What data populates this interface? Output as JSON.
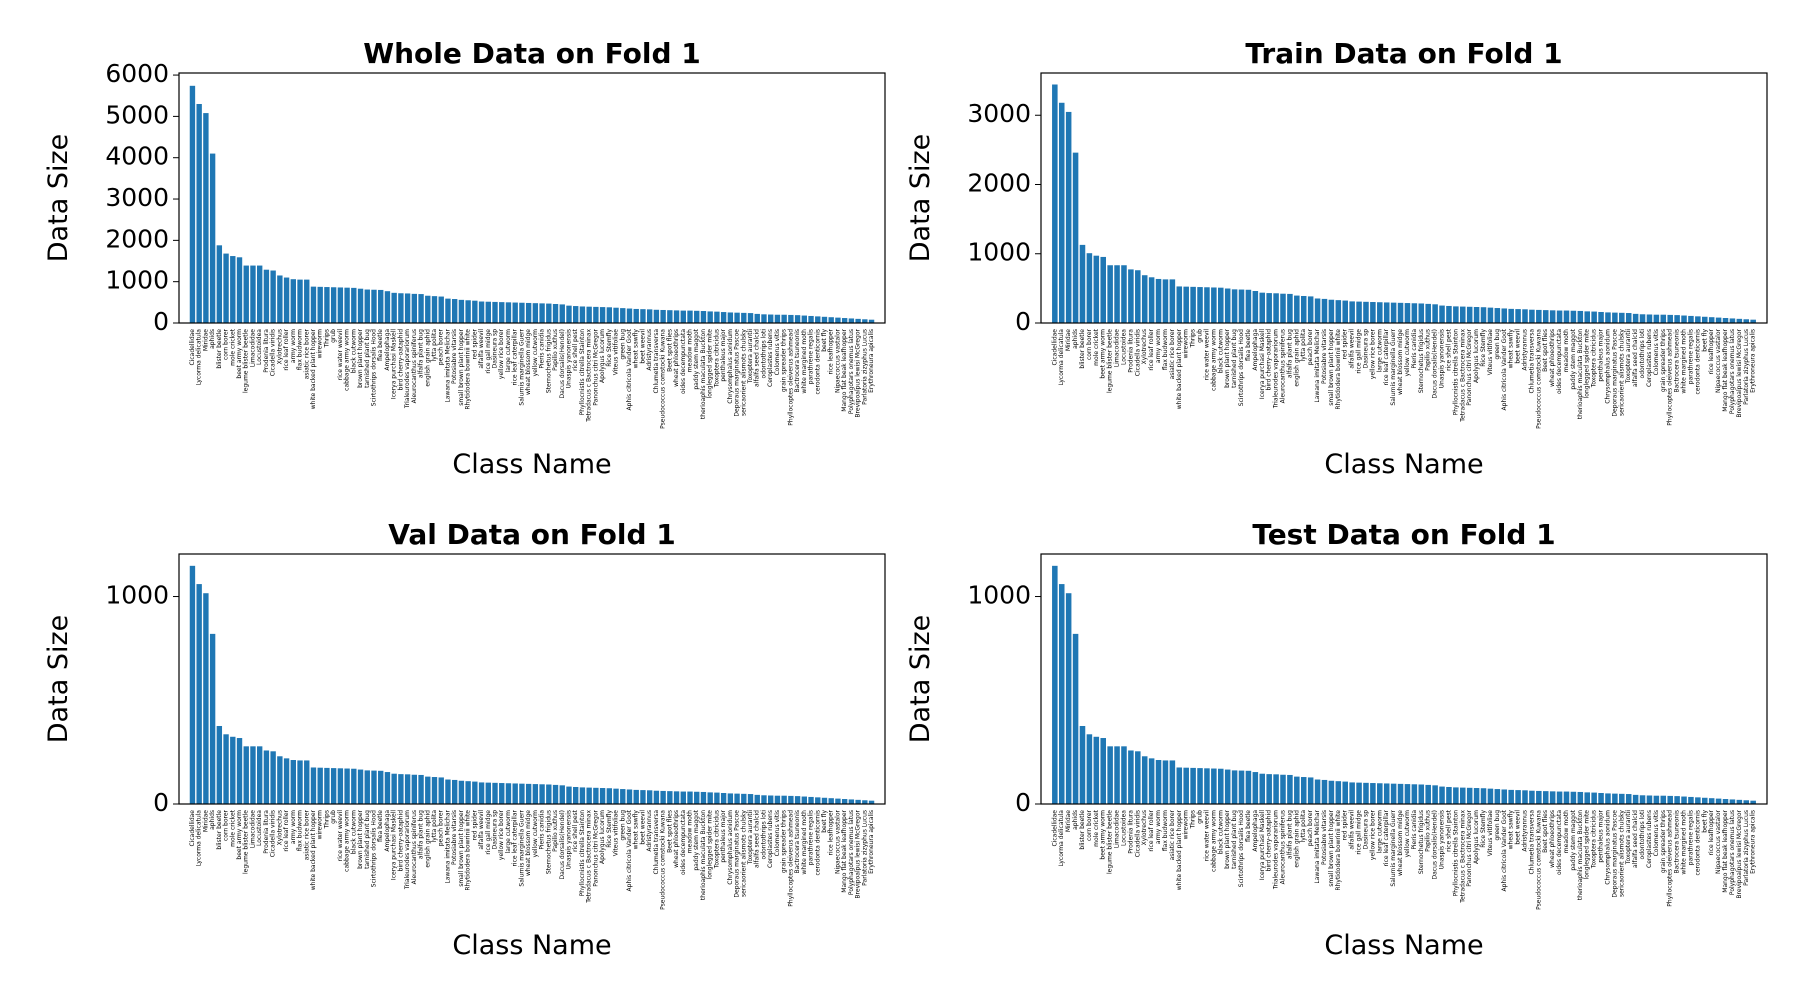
{
  "chart_data": [
    {
      "type": "bar",
      "title": "Whole Data on Fold 1",
      "xlabel": "Class Name",
      "ylabel": "Data Size",
      "color": "#1f77b4",
      "categories": [
        "Cicadellidae",
        "Lycorma delicatula",
        "Miridae",
        "aphids",
        "blister beetle",
        "corn borer",
        "mole cricket",
        "beet army worm",
        "legume blister beetle",
        "Limacodidae",
        "Locustoidea",
        "Prodenia litura",
        "Cicadella viridis",
        "Xylotrechus",
        "rice leaf roller",
        "army worm",
        "flax budworm",
        "asiatic rice borer",
        "white backed plant hopper",
        "wireworm",
        "Thrips",
        "grub",
        "rice water weevil",
        "cabbage army worm",
        "black cutworm",
        "brown plant hopper",
        "tarnished plant bug",
        "Scirtothrips dorsalis Hood",
        "flea beetle",
        "Ampelophaga",
        "Icerya purchasi Maskell",
        "bird cherry-oataphid",
        "Trialeurodes vaporariorum",
        "Aleurocanthus spiniferus",
        "alfalfa plant bug",
        "english grain aphid",
        "lytta polita",
        "peach borer",
        "Lawana imitata Melichar",
        "Potosiabre vitarsis",
        "small brown plant hopper",
        "Rhytidodera bowrinii white",
        "red spider",
        "alfalfa weevil",
        "rice gall midge",
        "Dasineura sp",
        "yellow rice borer",
        "large cutworm",
        "rice leaf caterpillar",
        "Salurnis marginella Guerr",
        "wheat blossom midge",
        "yellow cutworm",
        "Pieris canidia",
        "Sternochetus frigidus",
        "Papilio xuthus",
        "Dacus dorsalis(Hendel)",
        "Unaspis yanonensis",
        "rice shell pest",
        "Phyllocnistis citrella Stainton",
        "Tetradacus c Bactrocera minax",
        "Panonchus citri McGregor",
        "Apolygus lucorum",
        "Rice Stemfly",
        "Viteus vitifoliae",
        "green bug",
        "Aphis citricola Vander Goot",
        "wheat sawfly",
        "beet weevil",
        "Adristyrannus",
        "Chlumetia transversa",
        "Pseudococcus comstocki Kuwana",
        "Beet spot flies",
        "wheat phloeothrips",
        "oides decempunctata",
        "meadow moth",
        "paddy stem maggot",
        "therioaphis maculata Buckton",
        "longlegged spider mite",
        "Toxoptera citricidus",
        "penthaleus major",
        "Chrysomphalus aonidum",
        "Deporaus marginatus Pascoe",
        "sericaorient alismots chulsky",
        "Toxoptera aurantii",
        "alfalfa seed chalcid",
        "odontothrips loti",
        "Ceroplastes rubens",
        "Colomerus vitis",
        "grain spreader thrips",
        "Phyllocoptes oleiverus ashmead",
        "Bactrocera tsuneonis",
        "white margined moth",
        "parathrene regalis",
        "cerodonta denticornis",
        "beet fly",
        "rice leafhopper",
        "Nipaecoccus vastalor",
        "Mango flat beak leafhopper",
        "Polyphagotars onemus latus",
        "Brevipoalpus lewisi McGregor",
        "Parlatoria zizyphus Lucus",
        "Erythroneura apicalis"
      ],
      "values": [
        5740,
        5300,
        5080,
        4100,
        1880,
        1680,
        1620,
        1590,
        1390,
        1390,
        1390,
        1290,
        1270,
        1150,
        1100,
        1060,
        1050,
        1050,
        880,
        875,
        870,
        865,
        860,
        855,
        850,
        830,
        810,
        805,
        800,
        770,
        730,
        720,
        715,
        705,
        700,
        660,
        650,
        640,
        590,
        580,
        560,
        550,
        540,
        520,
        515,
        510,
        505,
        500,
        495,
        490,
        485,
        480,
        475,
        470,
        460,
        450,
        420,
        410,
        400,
        395,
        390,
        385,
        380,
        370,
        360,
        350,
        340,
        335,
        330,
        320,
        315,
        310,
        305,
        300,
        300,
        295,
        290,
        280,
        275,
        265,
        255,
        250,
        245,
        240,
        220,
        210,
        205,
        200,
        200,
        195,
        190,
        180,
        170,
        160,
        150,
        140,
        130,
        120,
        110,
        100,
        90,
        80
      ],
      "ylim": [
        0,
        6050
      ],
      "yticks": [
        0,
        1000,
        2000,
        3000,
        4000,
        5000,
        6000
      ]
    },
    {
      "type": "bar",
      "title": "Train Data on Fold 1",
      "xlabel": "Class Name",
      "ylabel": "Data Size",
      "color": "#1f77b4",
      "categories": [
        "Cicadellidae",
        "Lycorma delicatula",
        "Miridae",
        "aphids",
        "blister beetle",
        "corn borer",
        "mole cricket",
        "beet army worm",
        "legume blister beetle",
        "Limacodidae",
        "Locustoidea",
        "Prodenia litura",
        "Cicadella viridis",
        "Xylotrechus",
        "rice leaf roller",
        "army worm",
        "flax budworm",
        "asiatic rice borer",
        "white backed plant hopper",
        "wireworm",
        "Thrips",
        "grub",
        "rice water weevil",
        "cabbage army worm",
        "black cutworm",
        "brown plant hopper",
        "tarnished plant bug",
        "Scirtothrips dorsalis Hood",
        "flea beetle",
        "Ampelophaga",
        "Icerya purchasi Maskell",
        "bird cherry-oataphid",
        "Trialeurodes vaporariorum",
        "Aleurocanthus spiniferus",
        "alfalfa plant bug",
        "english grain aphid",
        "lytta polita",
        "peach borer",
        "Lawana imitata Melichar",
        "Potosiabre vitarsis",
        "small brown plant hopper",
        "Rhytidodera bowrinii white",
        "red spider",
        "alfalfa weevil",
        "rice gall midge",
        "Dasineura sp",
        "yellow rice borer",
        "large cutworm",
        "rice leaf caterpillar",
        "Salurnis marginella Guerr",
        "wheat blossom midge",
        "yellow cutworm",
        "Pieris canidia",
        "Sternochetus frigidus",
        "Papilio xuthus",
        "Dacus dorsalis(Hendel)",
        "Unaspis yanonensis",
        "rice shell pest",
        "Phyllocnistis citrella Stainton",
        "Tetradacus c Bactrocera minax",
        "Panonchus citri McGregor",
        "Apolygus lucorum",
        "Rice Stemfly",
        "Viteus vitifoliae",
        "green bug",
        "Aphis citricola Vander Goot",
        "wheat sawfly",
        "beet weevil",
        "Adristyrannus",
        "Chlumetia transversa",
        "Pseudococcus comstocki Kuwana",
        "Beet spot flies",
        "wheat phloeothrips",
        "oides decempunctata",
        "meadow moth",
        "paddy stem maggot",
        "therioaphis maculata Buckton",
        "longlegged spider mite",
        "Toxoptera citricidus",
        "penthaleus major",
        "Chrysomphalus aonidum",
        "Deporaus marginatus Pascoe",
        "sericaorient alismots chulsky",
        "Toxoptera aurantii",
        "alfalfa seed chalcid",
        "odontothrips loti",
        "Ceroplastes rubens",
        "Colomerus vitis",
        "grain spreader thrips",
        "Phyllocoptes oleiverus ashmead",
        "Bactrocera tsuneonis",
        "white margined moth",
        "parathrene regalis",
        "cerodonta denticornis",
        "beet fly",
        "rice leafhopper",
        "Nipaecoccus vastalor",
        "Mango flat beak leafhopper",
        "Polyphagotars onemus latus",
        "Brevipoalpus lewisi McGregor",
        "Parlatoria zizyphus Lucus",
        "Erythroneura apicalis"
      ],
      "values": [
        3444,
        3180,
        3048,
        2460,
        1128,
        1008,
        972,
        954,
        834,
        834,
        834,
        774,
        762,
        690,
        660,
        636,
        630,
        630,
        528,
        525,
        522,
        519,
        516,
        513,
        510,
        498,
        486,
        483,
        480,
        462,
        438,
        432,
        429,
        423,
        420,
        396,
        390,
        384,
        354,
        348,
        336,
        330,
        324,
        312,
        309,
        306,
        303,
        300,
        297,
        294,
        291,
        288,
        285,
        282,
        276,
        270,
        252,
        246,
        240,
        237,
        234,
        231,
        228,
        222,
        216,
        210,
        204,
        201,
        198,
        192,
        189,
        186,
        183,
        180,
        180,
        177,
        174,
        168,
        165,
        159,
        153,
        150,
        147,
        144,
        132,
        126,
        123,
        120,
        120,
        117,
        114,
        108,
        102,
        96,
        90,
        84,
        78,
        72,
        66,
        60,
        54,
        48
      ],
      "ylim": [
        0,
        3610
      ],
      "yticks": [
        0,
        1000,
        2000,
        3000
      ]
    },
    {
      "type": "bar",
      "title": "Val Data on Fold 1",
      "xlabel": "Class Name",
      "ylabel": "Data Size",
      "color": "#1f77b4",
      "categories": [
        "Cicadellidae",
        "Lycorma delicatula",
        "Miridae",
        "aphids",
        "blister beetle",
        "corn borer",
        "mole cricket",
        "beet army worm",
        "legume blister beetle",
        "Limacodidae",
        "Locustoidea",
        "Prodenia litura",
        "Cicadella viridis",
        "Xylotrechus",
        "rice leaf roller",
        "army worm",
        "flax budworm",
        "asiatic rice borer",
        "white backed plant hopper",
        "wireworm",
        "Thrips",
        "grub",
        "rice water weevil",
        "cabbage army worm",
        "black cutworm",
        "brown plant hopper",
        "tarnished plant bug",
        "Scirtothrips dorsalis Hood",
        "flea beetle",
        "Ampelophaga",
        "Icerya purchasi Maskell",
        "bird cherry-oataphid",
        "Trialeurodes vaporariorum",
        "Aleurocanthus spiniferus",
        "alfalfa plant bug",
        "english grain aphid",
        "lytta polita",
        "peach borer",
        "Lawana imitata Melichar",
        "Potosiabre vitarsis",
        "small brown plant hopper",
        "Rhytidodera bowrinii white",
        "red spider",
        "alfalfa weevil",
        "rice gall midge",
        "Dasineura sp",
        "yellow rice borer",
        "large cutworm",
        "rice leaf caterpillar",
        "Salurnis marginella Guerr",
        "wheat blossom midge",
        "yellow cutworm",
        "Pieris canidia",
        "Sternochetus frigidus",
        "Papilio xuthus",
        "Dacus dorsalis(Hendel)",
        "Unaspis yanonensis",
        "rice shell pest",
        "Phyllocnistis citrella Stainton",
        "Tetradacus c Bactrocera minax",
        "Panonchus citri McGregor",
        "Apolygus lucorum",
        "Rice Stemfly",
        "Viteus vitifoliae",
        "green bug",
        "Aphis citricola Vander Goot",
        "wheat sawfly",
        "beet weevil",
        "Adristyrannus",
        "Chlumetia transversa",
        "Pseudococcus comstocki Kuwana",
        "Beet spot flies",
        "wheat phloeothrips",
        "oides decempunctata",
        "meadow moth",
        "paddy stem maggot",
        "therioaphis maculata Buckton",
        "longlegged spider mite",
        "Toxoptera citricidus",
        "penthaleus major",
        "Chrysomphalus aonidum",
        "Deporaus marginatus Pascoe",
        "sericaorient alismots chulsky",
        "Toxoptera aurantii",
        "alfalfa seed chalcid",
        "odontothrips loti",
        "Ceroplastes rubens",
        "Colomerus vitis",
        "grain spreader thrips",
        "Phyllocoptes oleiverus ashmead",
        "Bactrocera tsuneonis",
        "white margined moth",
        "parathrene regalis",
        "cerodonta denticornis",
        "beet fly",
        "rice leafhopper",
        "Nipaecoccus vastalor",
        "Mango flat beak leafhopper",
        "Polyphagotars onemus latus",
        "Brevipoalpus lewisi McGregor",
        "Parlatoria zizyphus Lucus",
        "Erythroneura apicalis"
      ],
      "values": [
        1148,
        1060,
        1016,
        820,
        376,
        336,
        324,
        318,
        278,
        278,
        278,
        258,
        254,
        230,
        220,
        212,
        210,
        210,
        176,
        175,
        174,
        173,
        172,
        171,
        170,
        166,
        162,
        161,
        160,
        154,
        146,
        144,
        143,
        141,
        140,
        132,
        130,
        128,
        118,
        116,
        112,
        110,
        108,
        104,
        103,
        102,
        101,
        100,
        99,
        98,
        97,
        96,
        95,
        94,
        92,
        90,
        84,
        82,
        80,
        79,
        78,
        77,
        76,
        74,
        72,
        70,
        68,
        67,
        66,
        64,
        63,
        62,
        61,
        60,
        60,
        59,
        58,
        56,
        55,
        53,
        51,
        50,
        49,
        48,
        44,
        42,
        41,
        40,
        40,
        39,
        38,
        36,
        34,
        32,
        30,
        28,
        26,
        24,
        22,
        20,
        18,
        16
      ],
      "ylim": [
        0,
        1205
      ],
      "yticks": [
        0,
        1000
      ]
    },
    {
      "type": "bar",
      "title": "Test Data on Fold 1",
      "xlabel": "Class Name",
      "ylabel": "Data Size",
      "color": "#1f77b4",
      "categories": [
        "Cicadellidae",
        "Lycorma delicatula",
        "Miridae",
        "aphids",
        "blister beetle",
        "corn borer",
        "mole cricket",
        "beet army worm",
        "legume blister beetle",
        "Limacodidae",
        "Locustoidea",
        "Prodenia litura",
        "Cicadella viridis",
        "Xylotrechus",
        "rice leaf roller",
        "army worm",
        "flax budworm",
        "asiatic rice borer",
        "white backed plant hopper",
        "wireworm",
        "Thrips",
        "grub",
        "rice water weevil",
        "cabbage army worm",
        "black cutworm",
        "brown plant hopper",
        "tarnished plant bug",
        "Scirtothrips dorsalis Hood",
        "flea beetle",
        "Ampelophaga",
        "Icerya purchasi Maskell",
        "bird cherry-oataphid",
        "Trialeurodes vaporariorum",
        "Aleurocanthus spiniferus",
        "alfalfa plant bug",
        "english grain aphid",
        "lytta polita",
        "peach borer",
        "Lawana imitata Melichar",
        "Potosiabre vitarsis",
        "small brown plant hopper",
        "Rhytidodera bowrinii white",
        "red spider",
        "alfalfa weevil",
        "rice gall midge",
        "Dasineura sp",
        "yellow rice borer",
        "large cutworm",
        "rice leaf caterpillar",
        "Salurnis marginella Guerr",
        "wheat blossom midge",
        "yellow cutworm",
        "Pieris canidia",
        "Sternochetus frigidus",
        "Papilio xuthus",
        "Dacus dorsalis(Hendel)",
        "Unaspis yanonensis",
        "rice shell pest",
        "Phyllocnistis citrella Stainton",
        "Tetradacus c Bactrocera minax",
        "Panonchus citri McGregor",
        "Apolygus lucorum",
        "Rice Stemfly",
        "Viteus vitifoliae",
        "green bug",
        "Aphis citricola Vander Goot",
        "wheat sawfly",
        "beet weevil",
        "Adristyrannus",
        "Chlumetia transversa",
        "Pseudococcus comstocki Kuwana",
        "Beet spot flies",
        "wheat phloeothrips",
        "oides decempunctata",
        "meadow moth",
        "paddy stem maggot",
        "therioaphis maculata Buckton",
        "longlegged spider mite",
        "Toxoptera citricidus",
        "penthaleus major",
        "Chrysomphalus aonidum",
        "Deporaus marginatus Pascoe",
        "sericaorient alismots chulsky",
        "Toxoptera aurantii",
        "alfalfa seed chalcid",
        "odontothrips loti",
        "Ceroplastes rubens",
        "Colomerus vitis",
        "grain spreader thrips",
        "Phyllocoptes oleiverus ashmead",
        "Bactrocera tsuneonis",
        "white margined moth",
        "parathrene regalis",
        "cerodonta denticornis",
        "beet fly",
        "rice leafhopper",
        "Nipaecoccus vastalor",
        "Mango flat beak leafhopper",
        "Polyphagotars onemus latus",
        "Brevipoalpus lewisi McGregor",
        "Parlatoria zizyphus Lucus",
        "Erythroneura apicalis"
      ],
      "values": [
        1148,
        1060,
        1016,
        820,
        376,
        336,
        324,
        318,
        278,
        278,
        278,
        258,
        254,
        230,
        220,
        212,
        210,
        210,
        176,
        175,
        174,
        173,
        172,
        171,
        170,
        166,
        162,
        161,
        160,
        154,
        146,
        144,
        143,
        141,
        140,
        132,
        130,
        128,
        118,
        116,
        112,
        110,
        108,
        104,
        103,
        102,
        101,
        100,
        99,
        98,
        97,
        96,
        95,
        94,
        92,
        90,
        84,
        82,
        80,
        79,
        78,
        77,
        76,
        74,
        72,
        70,
        68,
        67,
        66,
        64,
        63,
        62,
        61,
        60,
        60,
        59,
        58,
        56,
        55,
        53,
        51,
        50,
        49,
        48,
        44,
        42,
        41,
        40,
        40,
        39,
        38,
        36,
        34,
        32,
        30,
        28,
        26,
        24,
        22,
        20,
        18,
        16
      ],
      "ylim": [
        0,
        1205
      ],
      "yticks": [
        0,
        1000
      ]
    }
  ]
}
